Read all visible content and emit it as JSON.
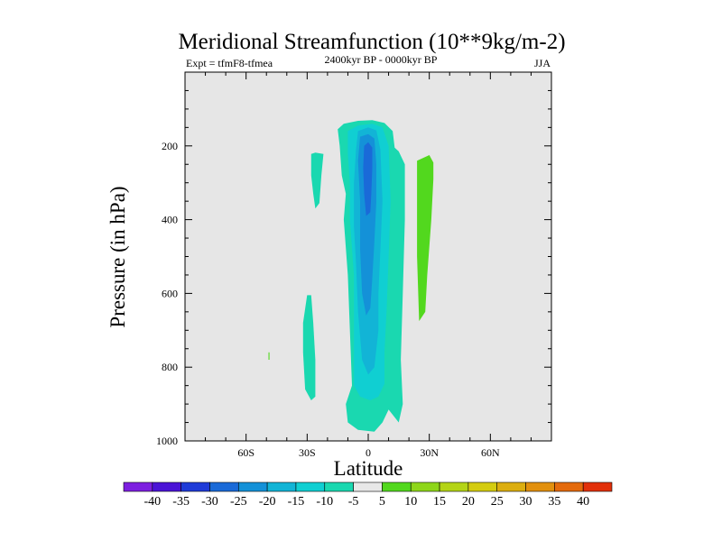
{
  "chart_data": {
    "type": "contour",
    "title": "Meridional Streamfunction (10**9kg/m-2)",
    "experiment": "Expt = tfmF8-tfmea",
    "period": "2400kyr BP - 0000kyr BP",
    "season": "JJA",
    "xlabel": "Latitude",
    "ylabel": "Pressure (in hPa)",
    "xlim": [
      -90,
      90
    ],
    "ylim": [
      1000,
      0
    ],
    "x_ticks": [
      {
        "value": -60,
        "label": "60S"
      },
      {
        "value": -30,
        "label": "30S"
      },
      {
        "value": 0,
        "label": "0"
      },
      {
        "value": 30,
        "label": "30N"
      },
      {
        "value": 60,
        "label": "60N"
      }
    ],
    "y_ticks": [
      {
        "value": 200,
        "label": "200"
      },
      {
        "value": 400,
        "label": "400"
      },
      {
        "value": 600,
        "label": "600"
      },
      {
        "value": 800,
        "label": "800"
      },
      {
        "value": 1000,
        "label": "1000"
      }
    ],
    "background_color": "#e6e6e6",
    "colorbar": {
      "levels": [
        -40,
        -35,
        -30,
        -25,
        -20,
        -15,
        -10,
        -5,
        5,
        10,
        15,
        20,
        25,
        30,
        35,
        40
      ],
      "level_labels": [
        "-40",
        "-35",
        "-30",
        "-25",
        "-20",
        "-15",
        "-10",
        "-5",
        "5",
        "10",
        "15",
        "20",
        "25",
        "30",
        "35",
        "40"
      ],
      "colors": [
        "#7d1fe0",
        "#4b14d6",
        "#1f3bd8",
        "#1a6ad8",
        "#1491d8",
        "#12b4d6",
        "#10cfd2",
        "#1ad8b0",
        "#e8e8e8",
        "#52d81e",
        "#8ed61a",
        "#b4d416",
        "#d4cc10",
        "#dcae10",
        "#e2900e",
        "#e46a0c",
        "#e2300a"
      ]
    },
    "regions": [
      {
        "level_index": 7,
        "points": [
          [
            -15,
            155
          ],
          [
            -12,
            140
          ],
          [
            -5,
            132
          ],
          [
            2,
            130
          ],
          [
            8,
            138
          ],
          [
            12,
            160
          ],
          [
            13,
            205
          ],
          [
            15,
            215
          ],
          [
            18,
            250
          ],
          [
            18,
            400
          ],
          [
            17,
            600
          ],
          [
            16,
            780
          ],
          [
            17,
            900
          ],
          [
            15,
            950
          ],
          [
            10,
            915
          ],
          [
            7,
            950
          ],
          [
            3,
            975
          ],
          [
            -5,
            970
          ],
          [
            -10,
            950
          ],
          [
            -11,
            900
          ],
          [
            -8,
            850
          ],
          [
            -9,
            700
          ],
          [
            -10,
            550
          ],
          [
            -12,
            400
          ],
          [
            -11,
            330
          ],
          [
            -13,
            280
          ],
          [
            -14,
            200
          ]
        ]
      },
      {
        "level_index": 6,
        "points": [
          [
            -10,
            160
          ],
          [
            -5,
            145
          ],
          [
            2,
            140
          ],
          [
            7,
            150
          ],
          [
            10,
            200
          ],
          [
            11,
            350
          ],
          [
            10,
            500
          ],
          [
            9,
            650
          ],
          [
            8,
            760
          ],
          [
            8,
            845
          ],
          [
            5,
            880
          ],
          [
            1,
            890
          ],
          [
            -4,
            880
          ],
          [
            -7,
            850
          ],
          [
            -7,
            700
          ],
          [
            -7,
            550
          ],
          [
            -9,
            400
          ],
          [
            -9,
            300
          ],
          [
            -10,
            220
          ]
        ]
      },
      {
        "level_index": 5,
        "points": [
          [
            -5,
            160
          ],
          [
            0,
            150
          ],
          [
            4,
            158
          ],
          [
            6,
            210
          ],
          [
            7,
            350
          ],
          [
            6,
            480
          ],
          [
            5,
            600
          ],
          [
            5,
            700
          ],
          [
            3,
            800
          ],
          [
            0,
            820
          ],
          [
            -3,
            780
          ],
          [
            -5,
            650
          ],
          [
            -6,
            520
          ],
          [
            -7,
            420
          ],
          [
            -7,
            300
          ],
          [
            -6,
            210
          ]
        ]
      },
      {
        "level_index": 4,
        "points": [
          [
            -4,
            175
          ],
          [
            0,
            168
          ],
          [
            3,
            180
          ],
          [
            4,
            250
          ],
          [
            4,
            350
          ],
          [
            3,
            460
          ],
          [
            2,
            560
          ],
          [
            1,
            640
          ],
          [
            -1,
            660
          ],
          [
            -3,
            600
          ],
          [
            -4,
            480
          ],
          [
            -4,
            350
          ],
          [
            -5,
            240
          ]
        ]
      },
      {
        "level_index": 3,
        "points": [
          [
            -2,
            200
          ],
          [
            0,
            190
          ],
          [
            2,
            205
          ],
          [
            2,
            260
          ],
          [
            1.5,
            330
          ],
          [
            1,
            380
          ],
          [
            -1,
            390
          ],
          [
            -2,
            330
          ],
          [
            -2.5,
            260
          ]
        ]
      },
      {
        "level_index": 7,
        "points": [
          [
            -28,
            222
          ],
          [
            -26,
            218
          ],
          [
            -22,
            222
          ],
          [
            -23,
            280
          ],
          [
            -24,
            355
          ],
          [
            -26,
            370
          ],
          [
            -27,
            330
          ],
          [
            -28,
            280
          ]
        ]
      },
      {
        "level_index": 7,
        "points": [
          [
            -30,
            605
          ],
          [
            -28,
            605
          ],
          [
            -27,
            680
          ],
          [
            -26,
            780
          ],
          [
            -26,
            880
          ],
          [
            -28,
            890
          ],
          [
            -31,
            860
          ],
          [
            -32,
            760
          ],
          [
            -32,
            680
          ]
        ]
      },
      {
        "level_index": 9,
        "points": [
          [
            24,
            240
          ],
          [
            30,
            225
          ],
          [
            32,
            245
          ],
          [
            32,
            290
          ],
          [
            31,
            400
          ],
          [
            29,
            550
          ],
          [
            28,
            650
          ],
          [
            25,
            675
          ],
          [
            24,
            500
          ],
          [
            24,
            300
          ]
        ]
      },
      {
        "level_index": 9,
        "points": [
          [
            -49,
            760
          ],
          [
            -48.5,
            760
          ],
          [
            -48.5,
            780
          ],
          [
            -49,
            780
          ]
        ]
      }
    ]
  }
}
